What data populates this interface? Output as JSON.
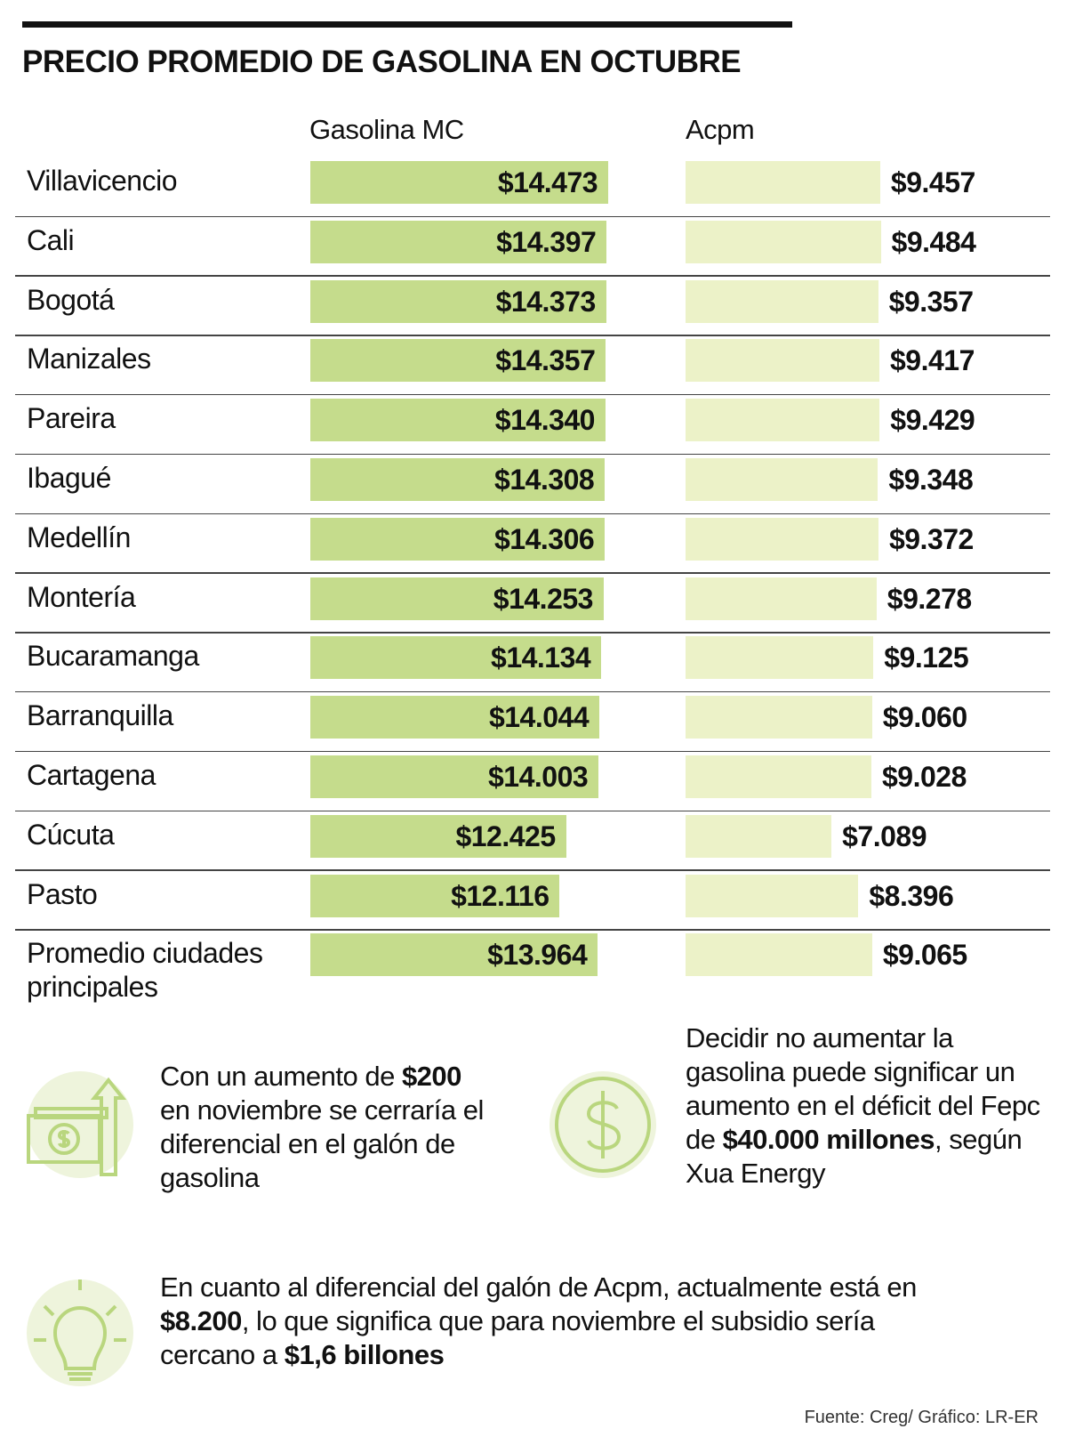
{
  "title": "PRECIO PROMEDIO DE GASOLINA EN OCTUBRE",
  "chart_data": {
    "type": "bar",
    "title": "PRECIO PROMEDIO DE GASOLINA EN OCTUBRE",
    "categories": [
      "Villavicencio",
      "Cali",
      "Bogotá",
      "Manizales",
      "Pareira",
      "Ibagué",
      "Medellín",
      "Montería",
      "Bucaramanga",
      "Barranquilla",
      "Cartagena",
      "Cúcuta",
      "Pasto",
      "Promedio ciudades principales"
    ],
    "series": [
      {
        "name": "Gasolina MC",
        "values": [
          14473,
          14397,
          14373,
          14357,
          14340,
          14308,
          14306,
          14253,
          14134,
          14044,
          14003,
          12425,
          12116,
          13964
        ],
        "labels": [
          "$14.473",
          "$14.397",
          "$14.373",
          "$14.357",
          "$14.340",
          "$14.308",
          "$14.306",
          "$14.253",
          "$14.134",
          "$14.044",
          "$14.003",
          "$12.425",
          "$12.116",
          "$13.964"
        ],
        "color": "#c5dc8c"
      },
      {
        "name": "Acpm",
        "values": [
          9457,
          9484,
          9357,
          9417,
          9429,
          9348,
          9372,
          9278,
          9125,
          9060,
          9028,
          7089,
          8396,
          9065
        ],
        "labels": [
          "$9.457",
          "$9.484",
          "$9.357",
          "$9.417",
          "$9.429",
          "$9.348",
          "$9.372",
          "$9.278",
          "$9.125",
          "$9.060",
          "$9.028",
          "$7.089",
          "$8.396",
          "$9.065"
        ],
        "color": "#ecf2c8"
      }
    ],
    "xlabel": "",
    "ylabel": ""
  },
  "notes": [
    {
      "pre": "Con un aumento de ",
      "bold": "$200",
      "post": " en noviembre se cerraría el diferencial en el galón de gasolina"
    },
    {
      "pre": "Decidir no aumentar la gasolina puede significar un aumento en el déficit del Fepc de ",
      "bold": "$40.000 millones",
      "post": ", según Xua Energy"
    },
    {
      "pre": "En cuanto al diferencial del galón de Acpm, actualmente está en ",
      "bold": "$8.200",
      "mid": ", lo que significa que para noviembre el subsidio sería cercano a ",
      "bold2": "$1,6 billones"
    }
  ],
  "source": "Fuente: Creg/ Gráfico: LR-ER"
}
